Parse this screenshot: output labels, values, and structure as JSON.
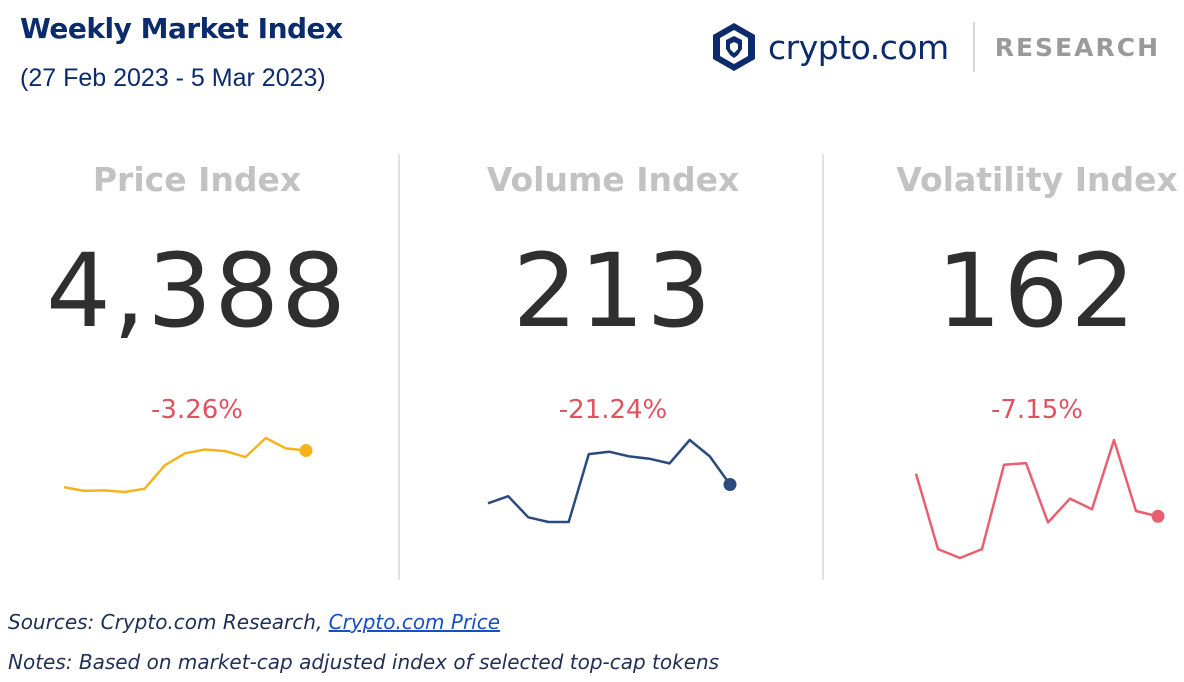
{
  "header": {
    "title": "Weekly Market Index",
    "subtitle": "(27 Feb 2023 - 5 Mar 2023)"
  },
  "logo": {
    "brand": "crypto.com",
    "section": "RESEARCH",
    "icon": "lion-shield-icon"
  },
  "footer": {
    "sources_prefix": "Sources: Crypto.com Research, ",
    "sources_link": "Crypto.com Price",
    "notes": "Notes: Based on market-cap adjusted index of selected top-cap tokens"
  },
  "colors": {
    "navy": "#0b2b6b",
    "negative": "#e0525f",
    "price_line": "#f5b41c",
    "volume_line": "#2b4a7e",
    "volatility_line": "#e8606f"
  },
  "chart_data": [
    {
      "type": "line",
      "title": "Price Index",
      "value": "4,388",
      "change": "-3.26%",
      "series": [
        {
          "values": [
            4305,
            4298,
            4299,
            4296,
            4302,
            4345,
            4367,
            4374,
            4371,
            4360,
            4395,
            4376,
            4372
          ]
        }
      ],
      "marker": "last-point",
      "grid": false
    },
    {
      "type": "line",
      "title": "Volume Index",
      "value": "213",
      "change": "-21.24%",
      "series": [
        {
          "values": [
            225,
            240,
            195,
            185,
            185,
            330,
            335,
            325,
            320,
            310,
            360,
            325,
            265
          ]
        }
      ],
      "marker": "last-point",
      "grid": false
    },
    {
      "type": "line",
      "title": "Volatility Index",
      "value": "162",
      "change": "-7.15%",
      "series": [
        {
          "values": [
            220,
            135,
            125,
            135,
            230,
            232,
            165,
            192,
            180,
            258,
            178,
            172
          ]
        }
      ],
      "marker": "last-point",
      "grid": false
    }
  ]
}
